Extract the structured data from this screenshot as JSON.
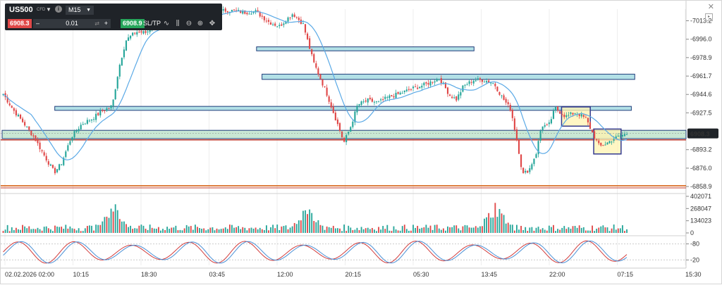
{
  "toolbar": {
    "symbol": "US500",
    "symbol_type": "CFD",
    "timeframe": "M15",
    "sell_price": "6908.3",
    "quantity": "0.01",
    "buy_price": "6908.9",
    "sltp_label": "SL/TP",
    "minus_label": "–",
    "plus_label": "+",
    "info_label": "i",
    "icons": [
      "line-chart-icon",
      "candles-icon",
      "zoom-out-icon",
      "zoom-in-icon",
      "crosshair-icon"
    ]
  },
  "window": {
    "close_glyph": "✕"
  },
  "chart_data": [
    {
      "type": "candlestick",
      "yticks": [
        "7013.2",
        "6996.0",
        "6978.9",
        "6961.7",
        "6944.6",
        "6927.5",
        "6893.2",
        "6876.0",
        "6858.9"
      ],
      "ylim": [
        6855,
        7024
      ],
      "xticks": [
        "02.02.2026 02:00",
        "10:15",
        "18:30",
        "03:45",
        "12:00",
        "20:15",
        "05:30",
        "13:45",
        "22:00",
        "07:15",
        "15:30"
      ],
      "current_price": "6908.3",
      "current_price_value": 6908.3,
      "support_line": 6902.3,
      "low_line": 6859.6,
      "low_line_note": "",
      "moving_average": "blue",
      "zones": [
        {
          "low": 6985.2,
          "high": 6988.9,
          "color": "#b2e0e6"
        },
        {
          "low": 6958.6,
          "high": 6963.5,
          "color": "#b2e0e6"
        },
        {
          "low": 6929.8,
          "high": 6933.5,
          "color": "#b2e0e6"
        },
        {
          "low": 6903.5,
          "high": 6911.2,
          "color": "#c9e8d4"
        }
      ],
      "boxes": [
        {
          "x_from": 0.818,
          "x_to": 0.86,
          "low": 6915.1,
          "high": 6933.0,
          "fill": "#fff3b0",
          "stroke": "#333a8f"
        },
        {
          "x_from": 0.865,
          "x_to": 0.905,
          "low": 6889.2,
          "high": 6912.4,
          "fill": "#fff3b0",
          "stroke": "#333a8f"
        }
      ],
      "anchors": [
        [
          0,
          6945
        ],
        [
          0.015,
          6930
        ],
        [
          0.03,
          6918
        ],
        [
          0.045,
          6905
        ],
        [
          0.06,
          6888
        ],
        [
          0.075,
          6872
        ],
        [
          0.085,
          6880
        ],
        [
          0.1,
          6905
        ],
        [
          0.115,
          6917
        ],
        [
          0.13,
          6922
        ],
        [
          0.145,
          6929
        ],
        [
          0.16,
          6934
        ],
        [
          0.17,
          6970
        ],
        [
          0.18,
          6995
        ],
        [
          0.195,
          7003
        ],
        [
          0.21,
          7002
        ],
        [
          0.225,
          7012
        ],
        [
          0.245,
          7008
        ],
        [
          0.265,
          7014
        ],
        [
          0.29,
          7016
        ],
        [
          0.305,
          7021
        ],
        [
          0.33,
          7023
        ],
        [
          0.355,
          7021
        ],
        [
          0.37,
          7022
        ],
        [
          0.39,
          7012
        ],
        [
          0.405,
          7008
        ],
        [
          0.425,
          7020
        ],
        [
          0.44,
          7010
        ],
        [
          0.455,
          6975
        ],
        [
          0.465,
          6960
        ],
        [
          0.475,
          6945
        ],
        [
          0.49,
          6918
        ],
        [
          0.5,
          6900
        ],
        [
          0.51,
          6915
        ],
        [
          0.52,
          6935
        ],
        [
          0.535,
          6939
        ],
        [
          0.55,
          6937
        ],
        [
          0.565,
          6942
        ],
        [
          0.58,
          6945
        ],
        [
          0.6,
          6950
        ],
        [
          0.62,
          6954
        ],
        [
          0.64,
          6960
        ],
        [
          0.655,
          6944
        ],
        [
          0.665,
          6940
        ],
        [
          0.675,
          6952
        ],
        [
          0.69,
          6958
        ],
        [
          0.705,
          6958
        ],
        [
          0.72,
          6955
        ],
        [
          0.73,
          6944
        ],
        [
          0.745,
          6930
        ],
        [
          0.755,
          6898
        ],
        [
          0.762,
          6870
        ],
        [
          0.772,
          6875
        ],
        [
          0.782,
          6890
        ],
        [
          0.79,
          6916
        ],
        [
          0.8,
          6915
        ],
        [
          0.81,
          6932
        ],
        [
          0.825,
          6924
        ],
        [
          0.84,
          6928
        ],
        [
          0.855,
          6922
        ],
        [
          0.865,
          6908
        ],
        [
          0.875,
          6896
        ],
        [
          0.885,
          6899
        ],
        [
          0.895,
          6903
        ],
        [
          0.905,
          6906
        ],
        [
          0.915,
          6908
        ]
      ]
    },
    {
      "type": "bar",
      "title": "",
      "yticks": [
        "402071",
        "268047",
        "134023",
        "0"
      ],
      "ylim": [
        0,
        402071
      ],
      "spikes": [
        [
          0.165,
          0.9
        ],
        [
          0.165,
          0.9
        ],
        [
          0.455,
          0.95
        ],
        [
          0.735,
          0.95
        ]
      ]
    },
    {
      "type": "line",
      "title": "",
      "yticks": [
        "80",
        "20"
      ],
      "ylim": [
        0,
        100
      ],
      "series": [
        {
          "color": "#d23c3c"
        },
        {
          "color": "#4a90d6"
        }
      ]
    }
  ]
}
